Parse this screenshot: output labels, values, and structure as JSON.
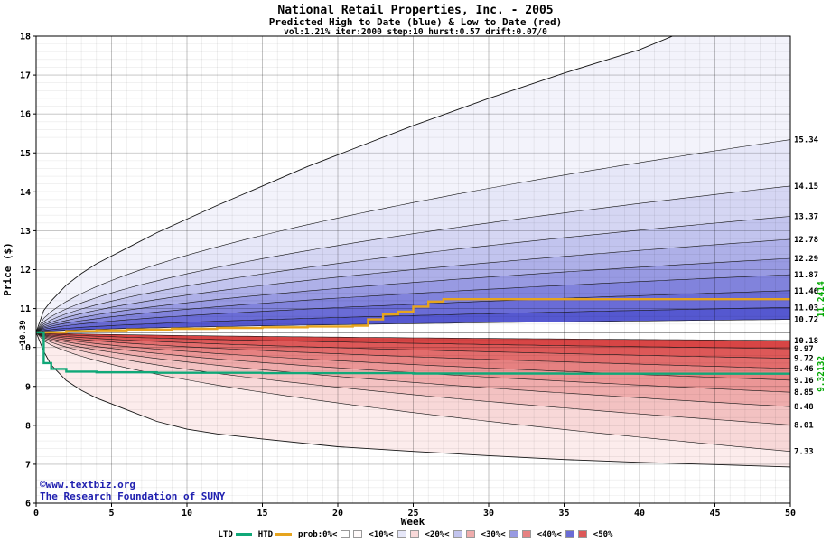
{
  "header": {
    "title": "National Retail Properties, Inc. - 2005",
    "subtitle": "Predicted High to Date (blue) &  Low to Date (red)",
    "params": "vol:1.21% iter:2000 step:10 hurst:0.57 drift:0.07/0"
  },
  "watermark": {
    "line1": "©www.textbiz.org",
    "line2": "The Research Foundation of SUNY",
    "color": "#2020b0"
  },
  "chart_data": {
    "type": "area",
    "title": "National Retail Properties, Inc. - 2005",
    "xlabel": "Week",
    "ylabel": "Price ($)",
    "xlim": [
      0,
      50
    ],
    "ylim": [
      6,
      18
    ],
    "x_ticks": [
      0,
      5,
      10,
      15,
      20,
      25,
      30,
      35,
      40,
      45,
      50
    ],
    "y_ticks": [
      6,
      7,
      8,
      9,
      10,
      11,
      12,
      13,
      14,
      15,
      16,
      17,
      18
    ],
    "grid": true,
    "start_price": 10.39,
    "start_price_label": "10.39",
    "hurst": 0.57,
    "upper_boundaries_final": [
      10.72,
      11.03,
      11.46,
      11.87,
      12.29,
      12.78,
      13.37,
      14.15,
      15.34
    ],
    "lower_boundaries_final": [
      10.18,
      9.97,
      9.72,
      9.46,
      9.16,
      8.85,
      8.48,
      8.01,
      7.33
    ],
    "upper_band_colors": [
      "#5558d0",
      "#6a6cd6",
      "#8183dc",
      "#989ae2",
      "#aeb0e8",
      "#c2c4ee",
      "#d5d6f3",
      "#e6e7f8",
      "#f3f3fb"
    ],
    "lower_band_colors": [
      "#d84545",
      "#dd5858",
      "#e26c6c",
      "#e68181",
      "#eb9696",
      "#efacac",
      "#f3c2c2",
      "#f8d8d8",
      "#fcecec"
    ],
    "upper_envelope": [
      [
        0,
        10.39
      ],
      [
        0.5,
        10.95
      ],
      [
        1,
        11.2
      ],
      [
        2,
        11.6
      ],
      [
        3,
        11.9
      ],
      [
        4,
        12.15
      ],
      [
        5,
        12.35
      ],
      [
        6,
        12.55
      ],
      [
        8,
        12.95
      ],
      [
        10,
        13.3
      ],
      [
        12,
        13.65
      ],
      [
        15,
        14.15
      ],
      [
        18,
        14.65
      ],
      [
        20,
        14.95
      ],
      [
        25,
        15.7
      ],
      [
        30,
        16.4
      ],
      [
        35,
        17.05
      ],
      [
        40,
        17.65
      ],
      [
        42.5,
        18.05
      ]
    ],
    "lower_envelope": [
      [
        0,
        10.39
      ],
      [
        0.5,
        9.9
      ],
      [
        1,
        9.55
      ],
      [
        2,
        9.15
      ],
      [
        3,
        8.9
      ],
      [
        4,
        8.7
      ],
      [
        5,
        8.55
      ],
      [
        6,
        8.4
      ],
      [
        8,
        8.1
      ],
      [
        10,
        7.9
      ],
      [
        12,
        7.78
      ],
      [
        15,
        7.65
      ],
      [
        20,
        7.45
      ],
      [
        25,
        7.33
      ],
      [
        30,
        7.22
      ],
      [
        35,
        7.12
      ],
      [
        40,
        7.05
      ],
      [
        45,
        6.99
      ],
      [
        50,
        6.93
      ]
    ],
    "htd": {
      "label": "HTD",
      "color": "#e6a41e",
      "final_value": 11.2414,
      "final_label": "11.2414",
      "points": [
        [
          0,
          10.39
        ],
        [
          2,
          10.42
        ],
        [
          4,
          10.44
        ],
        [
          6,
          10.46
        ],
        [
          9,
          10.48
        ],
        [
          12,
          10.5
        ],
        [
          15,
          10.52
        ],
        [
          18,
          10.54
        ],
        [
          21,
          10.56
        ],
        [
          22,
          10.72
        ],
        [
          23,
          10.85
        ],
        [
          24,
          10.92
        ],
        [
          25,
          11.05
        ],
        [
          26,
          11.18
        ],
        [
          27,
          11.2414
        ],
        [
          50,
          11.2414
        ]
      ]
    },
    "ltd": {
      "label": "LTD",
      "color": "#10a878",
      "final_value": 9.32132,
      "final_label": "9.32132",
      "points": [
        [
          0,
          10.39
        ],
        [
          0.5,
          9.6
        ],
        [
          1,
          9.45
        ],
        [
          2,
          9.38
        ],
        [
          4,
          9.36
        ],
        [
          8,
          9.35
        ],
        [
          15,
          9.34
        ],
        [
          25,
          9.33
        ],
        [
          35,
          9.325
        ],
        [
          50,
          9.32132
        ]
      ]
    }
  },
  "legend": {
    "items": [
      {
        "label": "LTD",
        "swatch": "line",
        "colors": [
          "#10a878"
        ]
      },
      {
        "label": "HTD",
        "swatch": "line",
        "colors": [
          "#e6a41e"
        ]
      },
      {
        "label": "prob:0%<",
        "swatch": "pair",
        "colors": [
          "#ffffff",
          "#fffafa"
        ]
      },
      {
        "label": "<10%<",
        "swatch": "pair",
        "colors": [
          "#e6e7f8",
          "#f8d8d8"
        ]
      },
      {
        "label": "<20%<",
        "swatch": "pair",
        "colors": [
          "#c2c4ee",
          "#efacac"
        ]
      },
      {
        "label": "<30%<",
        "swatch": "pair",
        "colors": [
          "#989ae2",
          "#e68181"
        ]
      },
      {
        "label": "<40%<",
        "swatch": "pair",
        "colors": [
          "#6a6cd6",
          "#dd5858"
        ]
      },
      {
        "label": "<50%",
        "swatch": "none",
        "colors": []
      }
    ]
  }
}
